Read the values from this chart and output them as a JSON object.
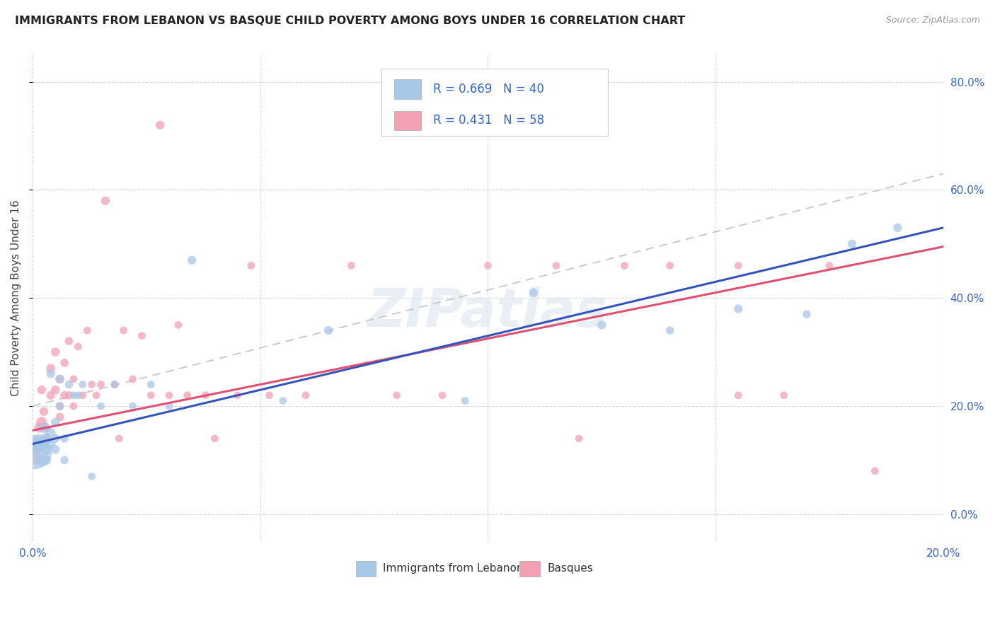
{
  "title": "IMMIGRANTS FROM LEBANON VS BASQUE CHILD POVERTY AMONG BOYS UNDER 16 CORRELATION CHART",
  "source": "Source: ZipAtlas.com",
  "ylabel": "Child Poverty Among Boys Under 16",
  "watermark": "ZIPatlas",
  "series1_name": "Immigrants from Lebanon",
  "series2_name": "Basques",
  "series1_color": "#a8c8e8",
  "series2_color": "#f4a0b4",
  "series1_line_color": "#3355bb",
  "series2_line_color": "#e05070",
  "trendline_dash_color": "#c8c8d0",
  "xlim": [
    0.0,
    0.2
  ],
  "ylim": [
    -0.05,
    0.85
  ],
  "xticks": [
    0.0,
    0.05,
    0.1,
    0.15,
    0.2
  ],
  "yticks": [
    0.0,
    0.2,
    0.4,
    0.6,
    0.8
  ],
  "background_color": "#ffffff",
  "grid_color": "#d0d8e8",
  "legend_color": "#3366cc",
  "legend_text_color": "#1a1a1a",
  "series1_R": 0.669,
  "series1_N": 40,
  "series2_R": 0.431,
  "series2_N": 58,
  "blue_line_x0": 0.0,
  "blue_line_y0": 0.13,
  "blue_line_x1": 0.2,
  "blue_line_y1": 0.53,
  "pink_line_x0": 0.0,
  "pink_line_y0": 0.155,
  "pink_line_x1": 0.2,
  "pink_line_y1": 0.495,
  "dash_line_x0": 0.0,
  "dash_line_y0": 0.2,
  "dash_line_x1": 0.2,
  "dash_line_y1": 0.63,
  "s1_x": [
    0.0005,
    0.001,
    0.0015,
    0.002,
    0.002,
    0.0025,
    0.003,
    0.003,
    0.003,
    0.004,
    0.004,
    0.004,
    0.005,
    0.005,
    0.005,
    0.006,
    0.006,
    0.007,
    0.007,
    0.008,
    0.009,
    0.01,
    0.011,
    0.013,
    0.015,
    0.018,
    0.022,
    0.026,
    0.03,
    0.035,
    0.055,
    0.065,
    0.095,
    0.11,
    0.125,
    0.14,
    0.155,
    0.17,
    0.18,
    0.19
  ],
  "s1_y": [
    0.115,
    0.125,
    0.135,
    0.13,
    0.1,
    0.16,
    0.14,
    0.12,
    0.1,
    0.15,
    0.13,
    0.26,
    0.17,
    0.14,
    0.12,
    0.25,
    0.2,
    0.14,
    0.1,
    0.24,
    0.22,
    0.22,
    0.24,
    0.07,
    0.2,
    0.24,
    0.2,
    0.24,
    0.2,
    0.47,
    0.21,
    0.34,
    0.21,
    0.41,
    0.35,
    0.34,
    0.38,
    0.37,
    0.5,
    0.53
  ],
  "s1_sz": [
    1200,
    200,
    200,
    150,
    150,
    120,
    120,
    120,
    100,
    100,
    100,
    80,
    80,
    80,
    80,
    80,
    70,
    70,
    70,
    70,
    60,
    60,
    60,
    60,
    60,
    60,
    60,
    60,
    60,
    80,
    60,
    80,
    60,
    80,
    80,
    70,
    80,
    70,
    80,
    80
  ],
  "s2_x": [
    0.0005,
    0.001,
    0.001,
    0.0015,
    0.002,
    0.002,
    0.0025,
    0.003,
    0.003,
    0.004,
    0.004,
    0.005,
    0.005,
    0.006,
    0.006,
    0.006,
    0.007,
    0.007,
    0.008,
    0.008,
    0.009,
    0.009,
    0.01,
    0.011,
    0.012,
    0.013,
    0.014,
    0.015,
    0.016,
    0.018,
    0.019,
    0.02,
    0.022,
    0.024,
    0.026,
    0.028,
    0.03,
    0.032,
    0.034,
    0.038,
    0.04,
    0.045,
    0.048,
    0.052,
    0.06,
    0.07,
    0.08,
    0.09,
    0.1,
    0.115,
    0.12,
    0.13,
    0.14,
    0.155,
    0.155,
    0.165,
    0.175,
    0.185
  ],
  "s2_y": [
    0.12,
    0.13,
    0.1,
    0.16,
    0.17,
    0.23,
    0.19,
    0.16,
    0.14,
    0.22,
    0.27,
    0.23,
    0.3,
    0.25,
    0.2,
    0.18,
    0.22,
    0.28,
    0.22,
    0.32,
    0.25,
    0.2,
    0.31,
    0.22,
    0.34,
    0.24,
    0.22,
    0.24,
    0.58,
    0.24,
    0.14,
    0.34,
    0.25,
    0.33,
    0.22,
    0.72,
    0.22,
    0.35,
    0.22,
    0.22,
    0.14,
    0.22,
    0.46,
    0.22,
    0.22,
    0.46,
    0.22,
    0.22,
    0.46,
    0.46,
    0.14,
    0.46,
    0.46,
    0.46,
    0.22,
    0.22,
    0.46,
    0.08
  ],
  "s2_sz": [
    200,
    150,
    100,
    100,
    120,
    80,
    80,
    80,
    80,
    80,
    80,
    80,
    80,
    80,
    70,
    70,
    70,
    70,
    70,
    70,
    60,
    60,
    60,
    60,
    60,
    60,
    60,
    60,
    80,
    60,
    60,
    60,
    60,
    60,
    60,
    80,
    60,
    60,
    60,
    60,
    60,
    60,
    60,
    60,
    60,
    60,
    60,
    60,
    60,
    60,
    60,
    60,
    60,
    60,
    60,
    60,
    60,
    60
  ]
}
